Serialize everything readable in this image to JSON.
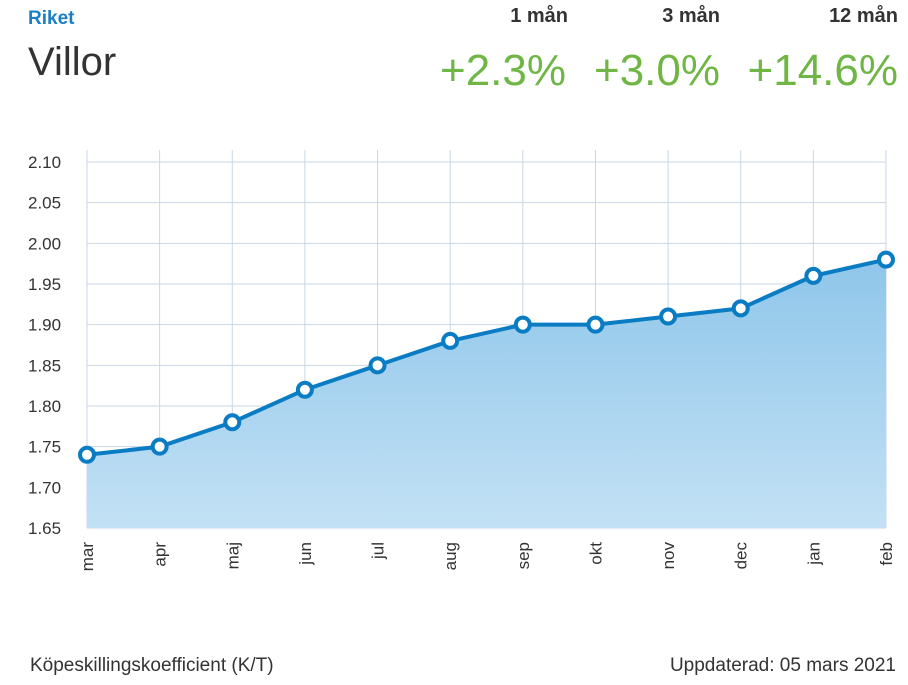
{
  "header": {
    "region": "Riket",
    "property_type": "Villor",
    "periods": [
      {
        "label": "1 mån",
        "change": "+2.3%"
      },
      {
        "label": "3 mån",
        "change": "+3.0%"
      },
      {
        "label": "12 mån",
        "change": "+14.6%"
      }
    ]
  },
  "colors": {
    "accent": "#1a7fc4",
    "positive": "#6fb645",
    "line": "#0a7cc3",
    "area_top": "#8fc6ea",
    "area_bottom": "#c3e1f5",
    "grid": "#c8d6e3"
  },
  "chart_data": {
    "type": "area",
    "categories": [
      "mar",
      "apr",
      "maj",
      "jun",
      "jul",
      "aug",
      "sep",
      "okt",
      "nov",
      "dec",
      "jan",
      "feb"
    ],
    "series": [
      {
        "values": [
          1.74,
          1.75,
          1.78,
          1.82,
          1.85,
          1.88,
          1.9,
          1.9,
          1.91,
          1.92,
          1.96,
          1.98
        ]
      }
    ],
    "ylim": [
      1.65,
      2.1
    ],
    "yticks": [
      "2.10",
      "2.05",
      "2.00",
      "1.95",
      "1.90",
      "1.85",
      "1.80",
      "1.75",
      "1.70",
      "1.65"
    ],
    "grid": true
  },
  "footer": {
    "metric": "Köpeskillingskoefficient (K/T)",
    "updated": "Uppdaterad: 05 mars 2021"
  }
}
